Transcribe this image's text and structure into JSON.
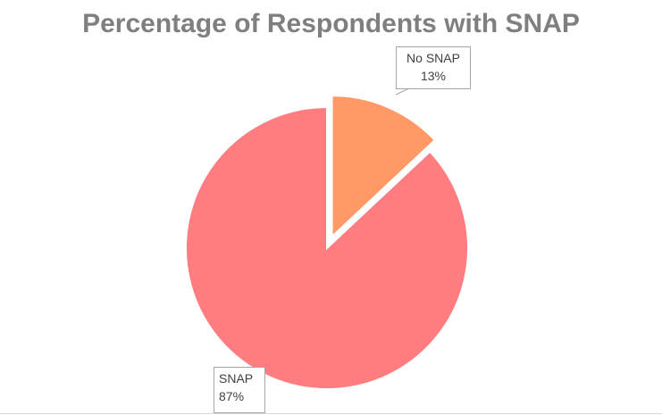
{
  "chart_data": {
    "type": "pie",
    "title": "Percentage of Respondents with SNAP",
    "slices": [
      {
        "label": "No SNAP",
        "value": 13,
        "value_label": "13%",
        "color": "#ff9966",
        "exploded": true
      },
      {
        "label": "SNAP",
        "value": 87,
        "value_label": "87%",
        "color": "#ff7c80",
        "exploded": false
      }
    ],
    "legend": "none"
  }
}
